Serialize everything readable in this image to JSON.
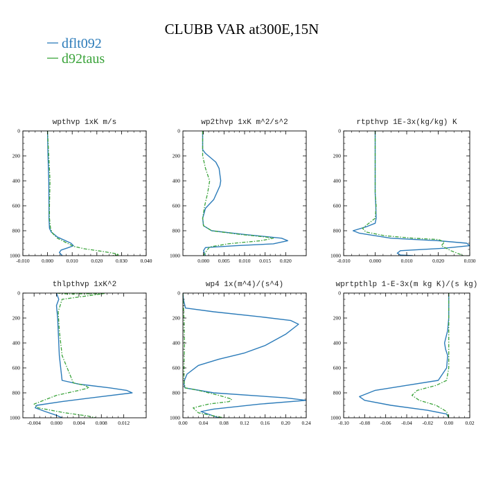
{
  "figure": {
    "title": "CLUBB VAR at300E,15N",
    "legend": [
      {
        "name": "dflt092",
        "color": "#2b7bb9",
        "dash": "solid"
      },
      {
        "name": "d92taus",
        "color": "#3aa33a",
        "dash": "dashdot"
      }
    ]
  },
  "chart_data": [
    {
      "type": "line",
      "title": "wpthvp  1xK m/s",
      "xlim": [
        -0.01,
        0.04
      ],
      "ylim": [
        1000,
        0
      ],
      "xticks": [
        "-0.010",
        "0.000",
        "0.010",
        "0.020",
        "0.030",
        "0.040"
      ],
      "xtick_values": [
        -0.01,
        0,
        0.01,
        0.02,
        0.03,
        0.04
      ],
      "yticks": [
        "0",
        "200",
        "400",
        "600",
        "800",
        "1000"
      ],
      "series": [
        {
          "name": "dflt092",
          "x": [
            0,
            0.0002,
            0.0005,
            0.0006,
            0.0006,
            0.0008,
            0.0015,
            0.004,
            0.0095,
            0.0105,
            0.0085,
            0.0055,
            0.0048,
            0.0055,
            0.006
          ],
          "y": [
            0,
            200,
            400,
            600,
            700,
            780,
            810,
            850,
            900,
            920,
            935,
            955,
            975,
            990,
            1000
          ]
        },
        {
          "name": "d92taus",
          "x": [
            0,
            0.0005,
            0.001,
            0.0008,
            0.0008,
            0.0012,
            0.002,
            0.004,
            0.008,
            0.0105,
            0.015,
            0.022,
            0.028,
            0.029,
            0.026
          ],
          "y": [
            0,
            200,
            400,
            600,
            700,
            780,
            820,
            860,
            900,
            925,
            945,
            965,
            985,
            992,
            1000
          ]
        }
      ]
    },
    {
      "type": "line",
      "title": "wp2thvp  1xK m^2/s^2",
      "xlim": [
        -0.005,
        0.025
      ],
      "ylim": [
        1000,
        0
      ],
      "xticks": [
        "0.000",
        "0.005",
        "0.010",
        "0.015",
        "0.020"
      ],
      "xtick_values": [
        0,
        0.005,
        0.01,
        0.015,
        0.02
      ],
      "yticks": [
        "0",
        "200",
        "400",
        "600",
        "800",
        "1000"
      ],
      "series": [
        {
          "name": "dflt092",
          "x": [
            -0.0002,
            -0.0002,
            -0.0002,
            0.0005,
            0.003,
            0.0038,
            0.0042,
            0.004,
            0.0025,
            0.0005,
            -0.0002,
            0.0,
            0.002,
            0.01,
            0.019,
            0.0205,
            0.017,
            0.008,
            0.0005,
            0.0,
            0.0005
          ],
          "y": [
            0,
            100,
            150,
            180,
            250,
            300,
            400,
            440,
            550,
            620,
            700,
            760,
            800,
            830,
            860,
            880,
            905,
            920,
            935,
            960,
            1000
          ]
        },
        {
          "name": "d92taus",
          "x": [
            -0.0002,
            -0.0002,
            -0.0002,
            -0.0002,
            0.0005,
            0.0015,
            0.001,
            0.0003,
            -0.0002,
            0.0,
            0.002,
            0.009,
            0.015,
            0.017,
            0.014,
            0.006,
            0.0015,
            0.0008,
            0.0
          ],
          "y": [
            0,
            100,
            150,
            200,
            300,
            400,
            500,
            600,
            700,
            760,
            800,
            830,
            850,
            860,
            880,
            905,
            930,
            960,
            1000
          ]
        }
      ]
    },
    {
      "type": "line",
      "title": "rtpthvp  1E-3x(kg/kg) K",
      "xlim": [
        -0.01,
        0.03
      ],
      "ylim": [
        1000,
        0
      ],
      "xticks": [
        "-0.010",
        "0.000",
        "0.010",
        "0.020",
        "0.030"
      ],
      "xtick_values": [
        -0.01,
        0,
        0.01,
        0.02,
        0.03
      ],
      "yticks": [
        "0",
        "200",
        "400",
        "600",
        "800",
        "1000"
      ],
      "series": [
        {
          "name": "dflt092",
          "x": [
            0,
            0,
            0,
            0,
            0.0002,
            0.0003,
            0.0,
            -0.003,
            -0.007,
            -0.005,
            0.005,
            0.02,
            0.029,
            0.03,
            0.022,
            0.008,
            0.007,
            0.008,
            0.012
          ],
          "y": [
            0,
            200,
            400,
            500,
            600,
            700,
            740,
            770,
            800,
            820,
            860,
            880,
            900,
            920,
            940,
            960,
            980,
            995,
            1000
          ]
        },
        {
          "name": "d92taus",
          "x": [
            0,
            0,
            0,
            0,
            0.0003,
            0.0,
            -0.002,
            -0.004,
            -0.003,
            0.003,
            0.012,
            0.02,
            0.022,
            0.021,
            0.024,
            0.027,
            0.028
          ],
          "y": [
            0,
            200,
            400,
            500,
            600,
            700,
            740,
            780,
            810,
            840,
            860,
            870,
            890,
            920,
            960,
            990,
            1000
          ]
        }
      ]
    },
    {
      "type": "line",
      "title": "thlpthvp  1xK^2",
      "xlim": [
        -0.006,
        0.016
      ],
      "ylim": [
        1000,
        0
      ],
      "xticks": [
        "-0.004",
        "0.000",
        "0.004",
        "0.008",
        "0.012"
      ],
      "xtick_values": [
        -0.004,
        0,
        0.004,
        0.008,
        0.012
      ],
      "yticks": [
        "0",
        "200",
        "400",
        "600",
        "800",
        "1000"
      ],
      "series": [
        {
          "name": "dflt092",
          "x": [
            0.0,
            0.0004,
            0.0,
            0.0002,
            0.0003,
            0.0004,
            0.0005,
            0.001,
            0.004,
            0.0095,
            0.0125,
            0.0135,
            0.008,
            0.001,
            -0.0035,
            -0.0038,
            -0.002,
            0.0,
            0.001
          ],
          "y": [
            0,
            50,
            100,
            200,
            300,
            400,
            500,
            700,
            730,
            760,
            780,
            800,
            830,
            870,
            900,
            920,
            950,
            980,
            1000
          ]
        },
        {
          "name": "d92taus",
          "x": [
            0.0001,
            0.002,
            0.0045,
            0.0085,
            0.001,
            0.0003,
            0.0005,
            0.001,
            0.003,
            0.005,
            0.0058,
            0.004,
            0.0,
            -0.004,
            -0.0033,
            0.0015,
            0.0055,
            0.007
          ],
          "y": [
            0,
            8,
            6,
            4,
            50,
            150,
            300,
            500,
            720,
            740,
            760,
            780,
            820,
            890,
            920,
            960,
            985,
            1000
          ]
        }
      ]
    },
    {
      "type": "line",
      "title": "wp4  1x(m^4)/(s^4)",
      "xlim": [
        0,
        0.24
      ],
      "ylim": [
        1000,
        0
      ],
      "xticks": [
        "0.00",
        "0.04",
        "0.08",
        "0.12",
        "0.16",
        "0.20",
        "0.24"
      ],
      "xtick_values": [
        0,
        0.04,
        0.08,
        0.12,
        0.16,
        0.2,
        0.24
      ],
      "yticks": [
        "0",
        "200",
        "400",
        "600",
        "800",
        "1000"
      ],
      "series": [
        {
          "name": "dflt092",
          "x": [
            0.0,
            0.001,
            0.005,
            0.06,
            0.15,
            0.21,
            0.225,
            0.2,
            0.16,
            0.12,
            0.07,
            0.03,
            0.008,
            0.003,
            0.002,
            0.004,
            0.06,
            0.2,
            0.24,
            0.15,
            0.06,
            0.035,
            0.07
          ],
          "y": [
            0,
            50,
            120,
            150,
            190,
            220,
            250,
            330,
            420,
            480,
            530,
            580,
            650,
            700,
            730,
            760,
            800,
            840,
            860,
            890,
            930,
            950,
            1000
          ]
        },
        {
          "name": "d92taus",
          "x": [
            0.0,
            0.002,
            0.003,
            0.002,
            0.002,
            0.004,
            0.03,
            0.07,
            0.095,
            0.09,
            0.05,
            0.02,
            0.03,
            0.06,
            0.08
          ],
          "y": [
            0,
            200,
            400,
            600,
            700,
            760,
            780,
            820,
            850,
            870,
            890,
            920,
            960,
            985,
            1000
          ]
        }
      ]
    },
    {
      "type": "line",
      "title": "wprtpthlp  1-E-3x(m kg K)/(s kg)",
      "xlim": [
        -0.1,
        0.02
      ],
      "ylim": [
        1000,
        0
      ],
      "xticks": [
        "-0.10",
        "-0.08",
        "-0.06",
        "-0.04",
        "-0.02",
        "0.00",
        "0.02"
      ],
      "xtick_values": [
        -0.1,
        -0.08,
        -0.06,
        -0.04,
        -0.02,
        0,
        0.02
      ],
      "yticks": [
        "0",
        "200",
        "400",
        "600",
        "800",
        "1000"
      ],
      "series": [
        {
          "name": "dflt092",
          "x": [
            0.0,
            0.0,
            -0.001,
            -0.004,
            -0.003,
            -0.001,
            -0.002,
            -0.01,
            -0.04,
            -0.07,
            -0.085,
            -0.08,
            -0.055,
            -0.02,
            -0.002,
            0.0
          ],
          "y": [
            0,
            200,
            300,
            400,
            450,
            500,
            600,
            700,
            740,
            780,
            830,
            860,
            900,
            940,
            970,
            1000
          ]
        },
        {
          "name": "d92taus",
          "x": [
            0.0,
            0.0,
            0.0,
            0.0,
            -0.002,
            -0.012,
            -0.03,
            -0.035,
            -0.028,
            -0.012,
            -0.002,
            0.0
          ],
          "y": [
            0,
            200,
            400,
            600,
            700,
            740,
            780,
            820,
            860,
            900,
            950,
            1000
          ]
        }
      ]
    }
  ]
}
